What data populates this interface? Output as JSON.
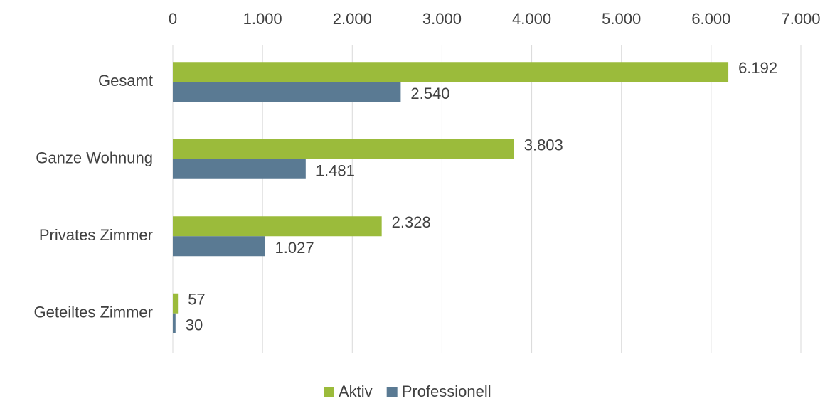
{
  "chart_data": {
    "type": "bar",
    "orientation": "horizontal",
    "categories": [
      "Gesamt",
      "Ganze Wohnung",
      "Privates Zimmer",
      "Geteiltes Zimmer"
    ],
    "series": [
      {
        "name": "Aktiv",
        "color": "#9bbb3b",
        "values": [
          6192,
          3803,
          2328,
          57
        ],
        "value_labels": [
          "6.192",
          "3.803",
          "2.328",
          "57"
        ]
      },
      {
        "name": "Professionell",
        "color": "#5a7a93",
        "values": [
          2540,
          1481,
          1027,
          30
        ],
        "value_labels": [
          "2.540",
          "1.481",
          "1.027",
          "30"
        ]
      }
    ],
    "xlim": [
      0,
      7000
    ],
    "xticks": [
      0,
      {
        "value": 1000,
        "label": "1.000"
      },
      {
        "value": 2000,
        "label": "2.000"
      },
      {
        "value": 3000,
        "label": "3.000"
      },
      {
        "value": 4000,
        "label": "4.000"
      },
      {
        "value": 5000,
        "label": "5.000"
      },
      {
        "value": 6000,
        "label": "6.000"
      },
      {
        "value": 7000,
        "label": "7.000"
      }
    ],
    "grid": true,
    "legend": "bottom"
  }
}
